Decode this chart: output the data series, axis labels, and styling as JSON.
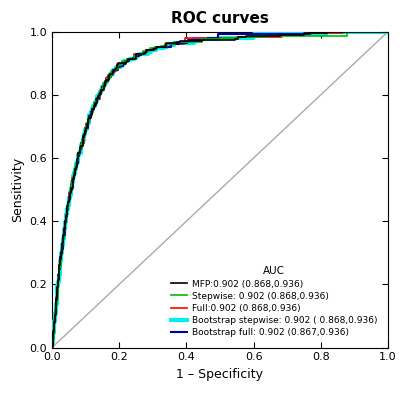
{
  "title": "ROC curves",
  "xlabel": "1 – Specificity",
  "ylabel": "Sensitivity",
  "xlim": [
    0.0,
    1.0
  ],
  "ylim": [
    0.0,
    1.0
  ],
  "xticks": [
    0.0,
    0.2,
    0.4,
    0.6,
    0.8,
    1.0
  ],
  "yticks": [
    0.0,
    0.2,
    0.4,
    0.6,
    0.8,
    1.0
  ],
  "legend_title": "AUC",
  "legend_entries": [
    {
      "label": "MFP:0.902 (0.868,0.936)",
      "color": "#000000",
      "lw": 1.2
    },
    {
      "label": "Stepwise: 0.902 (0.868,0.936)",
      "color": "#00bb00",
      "lw": 1.2
    },
    {
      "label": "Full:0.902 (0.868,0.936)",
      "color": "#ff0000",
      "lw": 1.2
    },
    {
      "label": "Bootstrap stepwise: 0.902 ( 0.868,0.936)",
      "color": "#00eeee",
      "lw": 3.0
    },
    {
      "label": "Bootstrap full: 0.902 (0.867,0.936)",
      "color": "#0000aa",
      "lw": 1.5
    }
  ],
  "diagonal_color": "#aaaaaa",
  "bg_color": "#ffffff",
  "seed": 42,
  "roc_key_fpr": [
    0.0,
    0.005,
    0.01,
    0.015,
    0.02,
    0.03,
    0.04,
    0.05,
    0.06,
    0.07,
    0.08,
    0.09,
    0.1,
    0.12,
    0.14,
    0.16,
    0.18,
    0.2,
    0.25,
    0.3,
    0.35,
    0.4,
    0.5,
    0.6,
    0.7,
    0.8,
    0.9,
    1.0
  ],
  "roc_key_tpr": [
    0.0,
    0.06,
    0.11,
    0.18,
    0.23,
    0.32,
    0.4,
    0.46,
    0.52,
    0.57,
    0.61,
    0.65,
    0.69,
    0.75,
    0.8,
    0.84,
    0.87,
    0.89,
    0.92,
    0.94,
    0.955,
    0.965,
    0.975,
    0.982,
    0.988,
    0.993,
    0.997,
    1.0
  ],
  "title_fontsize": 11,
  "label_fontsize": 9,
  "tick_fontsize": 8,
  "legend_fontsize": 6.5,
  "legend_title_fontsize": 7.5
}
